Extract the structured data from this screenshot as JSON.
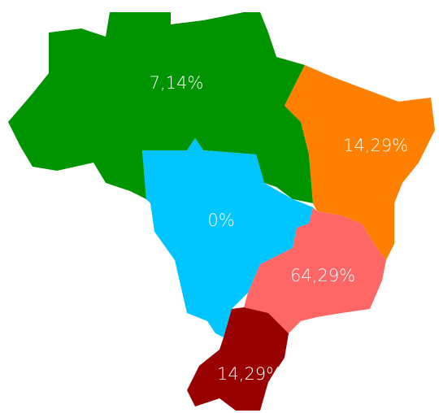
{
  "regions": [
    {
      "label": "7,14%",
      "color": "#009400"
    },
    {
      "label": "14,29%",
      "color": "#ff8000"
    },
    {
      "label": "0%",
      "color": "#00c5ff"
    },
    {
      "label": "64,29%",
      "color": "#ff6666"
    },
    {
      "label": "14,29%",
      "color": "#990000"
    }
  ]
}
